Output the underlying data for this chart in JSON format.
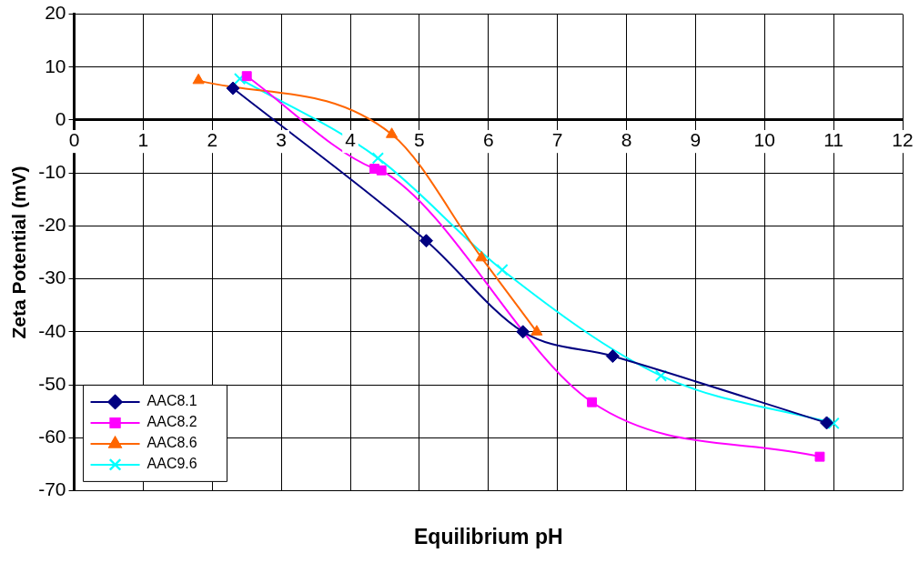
{
  "chart_data": {
    "type": "line",
    "xlabel": "Equilibrium pH",
    "ylabel": "Zeta Potential (mV)",
    "xlim": [
      0,
      12
    ],
    "xticks": [
      0,
      1,
      2,
      3,
      4,
      5,
      6,
      7,
      8,
      9,
      10,
      11,
      12
    ],
    "ylim": [
      -70,
      20
    ],
    "yticks": [
      -70,
      -60,
      -50,
      -40,
      -30,
      -20,
      -10,
      0,
      10,
      20
    ],
    "grid": true,
    "legend": "bottom left",
    "series": [
      {
        "name": "AAC8.1",
        "color": "#000080",
        "marker": "diamond",
        "x": [
          2.3,
          5.1,
          6.5,
          7.8,
          10.9
        ],
        "values": [
          6,
          -22.8,
          -40,
          -44.6,
          -57.2
        ]
      },
      {
        "name": "AAC8.2",
        "color": "#ff00ff",
        "marker": "square",
        "x": [
          2.5,
          4.35,
          4.45,
          7.5,
          10.8
        ],
        "values": [
          8.3,
          -9.2,
          -9.5,
          -53.3,
          -63.6
        ]
      },
      {
        "name": "AAC8.6",
        "color": "#ff6600",
        "marker": "triangle",
        "x": [
          1.8,
          4.6,
          5.9,
          6.7
        ],
        "values": [
          7.5,
          -2.7,
          -26,
          -40
        ]
      },
      {
        "name": "AAC9.6",
        "color": "#00ffff",
        "marker": "cross",
        "x": [
          2.4,
          4.4,
          6.2,
          8.5,
          11
        ],
        "values": [
          7.8,
          -7.2,
          -28.3,
          -48.3,
          -57.3
        ]
      }
    ]
  }
}
